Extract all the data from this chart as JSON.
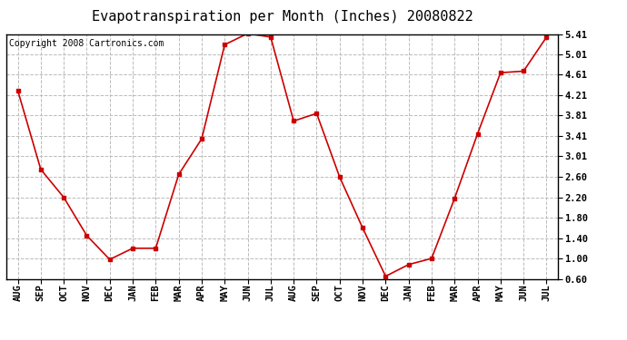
{
  "title": "Evapotranspiration per Month (Inches) 20080822",
  "copyright": "Copyright 2008 Cartronics.com",
  "months": [
    "AUG",
    "SEP",
    "OCT",
    "NOV",
    "DEC",
    "JAN",
    "FEB",
    "MAR",
    "APR",
    "MAY",
    "JUN",
    "JUL",
    "AUG",
    "SEP",
    "OCT",
    "NOV",
    "DEC",
    "JAN",
    "FEB",
    "MAR",
    "APR",
    "MAY",
    "JUN",
    "JUL"
  ],
  "values": [
    4.3,
    2.75,
    2.2,
    1.45,
    0.98,
    1.2,
    1.2,
    2.65,
    3.35,
    5.2,
    5.42,
    5.35,
    3.7,
    3.85,
    2.6,
    1.6,
    0.65,
    0.88,
    1.0,
    2.18,
    3.45,
    4.65,
    4.68,
    5.35
  ],
  "line_color": "#cc0000",
  "marker": "s",
  "marker_size": 3,
  "background_color": "#ffffff",
  "plot_bg_color": "#ffffff",
  "grid_color": "#bbbbbb",
  "yticks": [
    0.6,
    1.0,
    1.4,
    1.8,
    2.2,
    2.6,
    3.01,
    3.41,
    3.81,
    4.21,
    4.61,
    5.01,
    5.41
  ],
  "ylim": [
    0.6,
    5.41
  ],
  "title_fontsize": 11,
  "copyright_fontsize": 7,
  "tick_fontsize": 7.5
}
